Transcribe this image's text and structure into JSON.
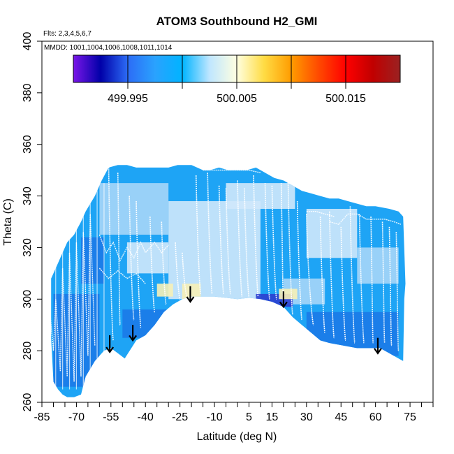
{
  "chart_data": {
    "type": "heatmap",
    "title": "ATOM3 Southbound H2_GMI",
    "subtitle_flights": "Flts: 2,3,4,5,6,7",
    "subtitle_dates": "MMDD: 1001,1004,1006,1008,1011,1014",
    "xlabel": "Latitude (deg N)",
    "ylabel": "Theta (C)",
    "xlim": [
      -85,
      85
    ],
    "ylim": [
      260,
      400
    ],
    "x_tick_labels": [
      "-85",
      "-70",
      "-55",
      "-40",
      "-25",
      "-10",
      "5",
      "15",
      "30",
      "45",
      "60",
      "75"
    ],
    "x_tick_values": [
      -85,
      -70,
      -55,
      -40,
      -25,
      -10,
      5,
      15,
      30,
      45,
      60,
      75
    ],
    "x_minor_step": 5,
    "y_ticks": [
      260,
      280,
      300,
      320,
      340,
      360,
      380,
      400
    ],
    "colorbar": {
      "range": [
        499.99,
        500.02
      ],
      "tick_labels": [
        "499.995",
        "500.005",
        "500.015"
      ],
      "tick_values": [
        499.995,
        500.005,
        500.015
      ],
      "divisions": [
        499.995,
        500.0,
        500.005,
        500.01,
        500.015
      ],
      "stops": [
        "#7a16e8",
        "#0000a8",
        "#2c6cf6",
        "#2aa2fe",
        "#00b4ff",
        "#bfe6ff",
        "#ffffe0",
        "#ffdc44",
        "#ff9c00",
        "#ff4a00",
        "#ff0000",
        "#c00000",
        "#9a2222"
      ]
    },
    "fill_colors": {
      "base": "#1ea4f5",
      "light": "#a6d6f8",
      "pale": "#cfe8fb",
      "deep": "#1b7ae8",
      "low": "#2b3fd0",
      "warm": "#f6f0b6",
      "trace": "#ffffff"
    },
    "curtain_lower": [
      [
        -81,
        285
      ],
      [
        -80,
        268
      ],
      [
        -78,
        265
      ],
      [
        -76,
        263
      ],
      [
        -74,
        262
      ],
      [
        -71,
        262
      ],
      [
        -68,
        263
      ],
      [
        -66,
        270
      ],
      [
        -62,
        276
      ],
      [
        -58,
        280
      ],
      [
        -55,
        281
      ],
      [
        -52,
        279
      ],
      [
        -49,
        277
      ],
      [
        -44,
        284
      ],
      [
        -40,
        286
      ],
      [
        -36,
        290
      ],
      [
        -32,
        295
      ],
      [
        -28,
        298
      ],
      [
        -24,
        300
      ],
      [
        -20,
        301
      ],
      [
        -15,
        301
      ],
      [
        -10,
        301
      ],
      [
        -5,
        300.5
      ],
      [
        0,
        300
      ],
      [
        5,
        300.5
      ],
      [
        10,
        300
      ],
      [
        15,
        299
      ],
      [
        20,
        297
      ],
      [
        24,
        293
      ],
      [
        28,
        290
      ],
      [
        32,
        287
      ],
      [
        36,
        284
      ],
      [
        40,
        283
      ],
      [
        46,
        282
      ],
      [
        52,
        281
      ],
      [
        58,
        281
      ],
      [
        62,
        281
      ],
      [
        66,
        279
      ],
      [
        70,
        277
      ],
      [
        72,
        276
      ]
    ],
    "curtain_upper": [
      [
        -81,
        308
      ],
      [
        -78,
        314
      ],
      [
        -76,
        318
      ],
      [
        -74,
        322
      ],
      [
        -71,
        325
      ],
      [
        -68,
        330
      ],
      [
        -66,
        334
      ],
      [
        -64,
        337
      ],
      [
        -62,
        340
      ],
      [
        -59,
        346
      ],
      [
        -56,
        351
      ],
      [
        -52,
        352
      ],
      [
        -48,
        352
      ],
      [
        -44,
        351
      ],
      [
        -40,
        351
      ],
      [
        -36,
        351
      ],
      [
        -30,
        351
      ],
      [
        -26,
        352
      ],
      [
        -20,
        352
      ],
      [
        -15,
        350
      ],
      [
        -12,
        350
      ],
      [
        -8,
        351
      ],
      [
        -4,
        350
      ],
      [
        0,
        350
      ],
      [
        4,
        350
      ],
      [
        8,
        351
      ],
      [
        12,
        349
      ],
      [
        16,
        347
      ],
      [
        20,
        346
      ],
      [
        24,
        344
      ],
      [
        28,
        342
      ],
      [
        32,
        341
      ],
      [
        36,
        340
      ],
      [
        40,
        339
      ],
      [
        44,
        339
      ],
      [
        48,
        338
      ],
      [
        52,
        337
      ],
      [
        56,
        336
      ],
      [
        60,
        336
      ],
      [
        66,
        335
      ],
      [
        70,
        334
      ],
      [
        72,
        332
      ],
      [
        73,
        306
      ],
      [
        72.5,
        300
      ],
      [
        72,
        276
      ]
    ],
    "highlight_regions": [
      {
        "color": "light",
        "poly": [
          [
            -60,
            345
          ],
          [
            -30,
            345
          ],
          [
            -30,
            325
          ],
          [
            -60,
            325
          ]
        ]
      },
      {
        "color": "pale",
        "poly": [
          [
            -30,
            338
          ],
          [
            10,
            338
          ],
          [
            10,
            300
          ],
          [
            -30,
            300
          ]
        ]
      },
      {
        "color": "pale",
        "poly": [
          [
            -5,
            345
          ],
          [
            25,
            345
          ],
          [
            25,
            335
          ],
          [
            -5,
            335
          ]
        ]
      },
      {
        "color": "pale",
        "poly": [
          [
            30,
            335
          ],
          [
            52,
            335
          ],
          [
            52,
            316
          ],
          [
            30,
            316
          ]
        ]
      },
      {
        "color": "light",
        "poly": [
          [
            52,
            320
          ],
          [
            70,
            320
          ],
          [
            70,
            306
          ],
          [
            52,
            306
          ]
        ]
      },
      {
        "color": "light",
        "poly": [
          [
            20,
            308
          ],
          [
            38,
            308
          ],
          [
            38,
            298
          ],
          [
            20,
            298
          ]
        ]
      },
      {
        "color": "pale",
        "poly": [
          [
            -48,
            322
          ],
          [
            -30,
            322
          ],
          [
            -30,
            310
          ],
          [
            -48,
            310
          ]
        ]
      },
      {
        "color": "deep",
        "poly": [
          [
            -80,
            302
          ],
          [
            -60,
            302
          ],
          [
            -60,
            266
          ],
          [
            -80,
            266
          ]
        ]
      },
      {
        "color": "deep",
        "poly": [
          [
            -50,
            296
          ],
          [
            -30,
            296
          ],
          [
            -30,
            285
          ],
          [
            -50,
            285
          ]
        ]
      },
      {
        "color": "deep",
        "poly": [
          [
            30,
            295
          ],
          [
            70,
            295
          ],
          [
            70,
            278
          ],
          [
            30,
            278
          ]
        ]
      },
      {
        "color": "deep",
        "poly": [
          [
            -68,
            324
          ],
          [
            -58,
            324
          ],
          [
            -58,
            306
          ],
          [
            -68,
            306
          ]
        ]
      },
      {
        "color": "low",
        "poly": [
          [
            8,
            302
          ],
          [
            24,
            302
          ],
          [
            24,
            297
          ],
          [
            8,
            297
          ]
        ]
      },
      {
        "color": "warm",
        "poly": [
          [
            -24,
            306
          ],
          [
            -16,
            306
          ],
          [
            -16,
            300
          ],
          [
            -24,
            300
          ]
        ]
      },
      {
        "color": "warm",
        "poly": [
          [
            -35,
            306
          ],
          [
            -28,
            306
          ],
          [
            -28,
            301
          ],
          [
            -35,
            301
          ]
        ]
      },
      {
        "color": "warm",
        "poly": [
          [
            18,
            304
          ],
          [
            26,
            304
          ],
          [
            26,
            300
          ],
          [
            18,
            300
          ]
        ]
      }
    ],
    "trace_profiles": [
      [
        -56,
        352,
        -54,
        284
      ],
      [
        -52,
        349,
        -51,
        290
      ],
      [
        -47,
        340,
        -45,
        292
      ],
      [
        -44,
        338,
        -42,
        289
      ],
      [
        -38,
        332,
        -36,
        295
      ],
      [
        -33,
        330,
        -31,
        298
      ],
      [
        -27,
        322,
        -25,
        300
      ],
      [
        -24,
        318,
        -22,
        301
      ],
      [
        -18,
        348,
        -16,
        302
      ],
      [
        -13,
        349,
        -11,
        302
      ],
      [
        -8,
        344,
        -6,
        302
      ],
      [
        -5,
        343,
        -3,
        302
      ],
      [
        0,
        346,
        2,
        301
      ],
      [
        3,
        343,
        5,
        301
      ],
      [
        7,
        348,
        9,
        301
      ],
      [
        12,
        345,
        14,
        300
      ],
      [
        15,
        344,
        17,
        300
      ],
      [
        19,
        345,
        20,
        298
      ],
      [
        22,
        346,
        24,
        294
      ],
      [
        26,
        338,
        28,
        292
      ],
      [
        30,
        333,
        33,
        290
      ],
      [
        36,
        332,
        38,
        287
      ],
      [
        40,
        334,
        42,
        285
      ],
      [
        45,
        328,
        47,
        284
      ],
      [
        49,
        336,
        51,
        283
      ],
      [
        53,
        333,
        55,
        283
      ],
      [
        58,
        332,
        59,
        283
      ],
      [
        63,
        330,
        64,
        283
      ],
      [
        66,
        328,
        67,
        282
      ],
      [
        69,
        326,
        70,
        280
      ]
    ],
    "trace_zigzags": [
      [
        [
          -82,
          300
        ],
        [
          -80,
          280
        ],
        [
          -79,
          300
        ],
        [
          -77,
          272
        ],
        [
          -76,
          312
        ],
        [
          -74,
          270
        ],
        [
          -73,
          318
        ],
        [
          -71,
          268
        ],
        [
          -70,
          322
        ],
        [
          -68,
          270
        ],
        [
          -67,
          326
        ],
        [
          -65,
          278
        ],
        [
          -64,
          333
        ],
        [
          -62,
          282
        ]
      ],
      [
        [
          -60,
          325
        ],
        [
          -57,
          318
        ],
        [
          -54,
          322
        ],
        [
          -51,
          315
        ],
        [
          -48,
          320
        ],
        [
          -45,
          316
        ],
        [
          -42,
          322
        ],
        [
          -40,
          318
        ],
        [
          -36,
          322
        ],
        [
          -33,
          318
        ],
        [
          -30,
          321
        ]
      ],
      [
        [
          -60,
          312
        ],
        [
          -56,
          308
        ],
        [
          -52,
          311
        ],
        [
          -48,
          308
        ],
        [
          -44,
          310
        ],
        [
          -40,
          306
        ]
      ],
      [
        [
          40,
          330
        ],
        [
          44,
          329
        ],
        [
          48,
          333
        ],
        [
          52,
          333
        ],
        [
          56,
          331
        ],
        [
          60,
          331
        ],
        [
          64,
          331
        ],
        [
          68,
          330
        ],
        [
          71,
          329
        ]
      ],
      [
        [
          30,
          334
        ],
        [
          34,
          334
        ],
        [
          38,
          333
        ],
        [
          42,
          332
        ]
      ],
      [
        [
          -15,
          350
        ],
        [
          -10,
          350
        ],
        [
          -5,
          350
        ],
        [
          0,
          350
        ],
        [
          5,
          350
        ],
        [
          10,
          349
        ]
      ]
    ],
    "arrows": [
      {
        "lat": -55.5,
        "theta_top": 286,
        "theta_tip": 279.5
      },
      {
        "lat": -45.5,
        "theta_top": 290,
        "theta_tip": 284
      },
      {
        "lat": -20.5,
        "theta_top": 305,
        "theta_tip": 299
      },
      {
        "lat": 20,
        "theta_top": 303,
        "theta_tip": 297
      },
      {
        "lat": 61,
        "theta_top": 285,
        "theta_tip": 279
      }
    ]
  }
}
